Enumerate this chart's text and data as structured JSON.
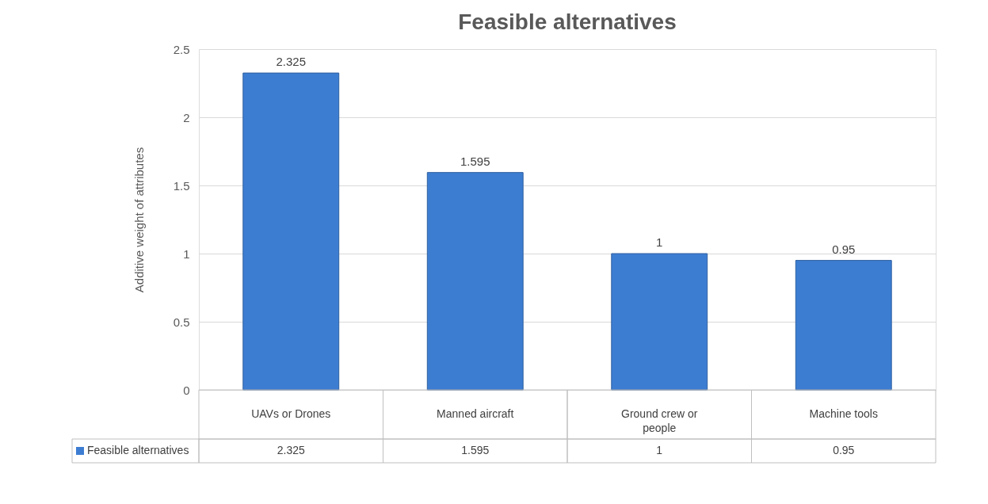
{
  "chart_data": {
    "type": "bar",
    "title": "Feasible alternatives",
    "ylabel": "Additive weight of attributes",
    "categories": [
      "UAVs or Drones",
      "Manned aircraft",
      "Ground crew or people",
      "Machine tools"
    ],
    "series": [
      {
        "name": "Feasible alternatives",
        "color": "#3c7dd2",
        "values": [
          2.325,
          1.595,
          1,
          0.95
        ],
        "value_labels": [
          "2.325",
          "1.595",
          "1",
          "0.95"
        ]
      }
    ],
    "ylim": [
      0,
      2.5
    ],
    "yticks": [
      0,
      0.5,
      1,
      1.5,
      2,
      2.5
    ],
    "grid": "y",
    "legend": "bottom",
    "data_labels": true
  }
}
